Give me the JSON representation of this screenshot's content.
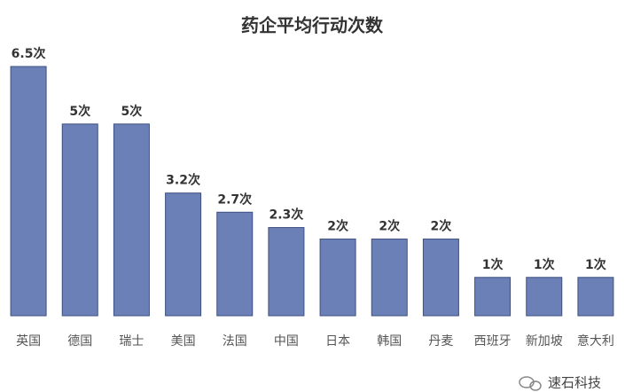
{
  "chart_data": {
    "type": "bar",
    "title": "药企平均行动次数",
    "categories": [
      "英国",
      "德国",
      "瑞士",
      "美国",
      "法国",
      "中国",
      "日本",
      "韩国",
      "丹麦",
      "西班牙",
      "新加坡",
      "意大利"
    ],
    "values": [
      6.5,
      5,
      5,
      3.2,
      2.7,
      2.3,
      2,
      2,
      2,
      1,
      1,
      1
    ],
    "value_labels": [
      "6.5次",
      "5次",
      "5次",
      "3.2次",
      "2.7次",
      "2.3次",
      "2次",
      "2次",
      "2次",
      "1次",
      "1次",
      "1次"
    ],
    "color": "#6b80b6",
    "ylim": [
      0,
      6.5
    ]
  },
  "watermark": "速石科技"
}
